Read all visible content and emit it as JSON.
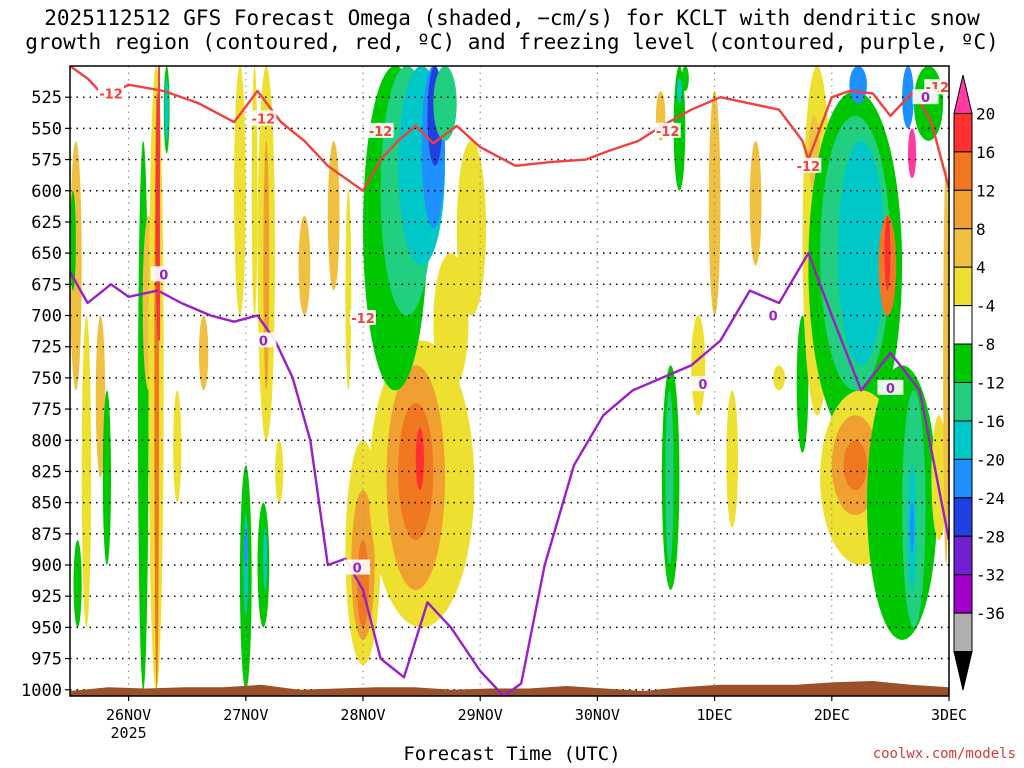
{
  "title_line1": "2025112512 GFS Forecast Omega (shaded, −cm/s) for KCLT with dendritic snow",
  "title_line2": "growth region (contoured, red, ºC) and freezing level (contoured, purple, ºC)",
  "credit": "coolwx.com/models",
  "chart_data": {
    "type": "heatmap",
    "xlabel": "Forecast Time (UTC)",
    "x_tick_labels": [
      "26NOV",
      "27NOV",
      "28NOV",
      "29NOV",
      "30NOV",
      "1DEC",
      "2DEC",
      "3DEC"
    ],
    "x_tick_sublabel": "2025",
    "x_range_days": [
      25.5,
      33.0
    ],
    "y_tick_labels": [
      "525",
      "550",
      "575",
      "600",
      "625",
      "650",
      "675",
      "700",
      "725",
      "750",
      "775",
      "800",
      "825",
      "850",
      "875",
      "900",
      "925",
      "950",
      "975",
      "1000"
    ],
    "y_range_hpa": [
      500,
      1005
    ],
    "colorbar_labels": [
      "20",
      "16",
      "12",
      "8",
      "4",
      "-4",
      "-8",
      "-12",
      "-16",
      "-20",
      "-24",
      "-28",
      "-32",
      "-36"
    ],
    "colorbar_colors": [
      "#ff3aa0",
      "#ff3030",
      "#f07820",
      "#f0a030",
      "#f0c040",
      "#ede030",
      "#ffffff",
      "#00c800",
      "#20d080",
      "#00c8c8",
      "#1e90ff",
      "#2040e0",
      "#7020d0",
      "#a000c8",
      "#b0b0b0",
      "#000000"
    ],
    "contour_labels": {
      "dgz": "-12",
      "freezing": "0"
    },
    "contour_colors": {
      "dgz": "#f04040",
      "freezing": "#9a1fc8",
      "terrain": "#9a5028"
    },
    "dgz_line_hpa": {
      "day": [
        25.5,
        25.65,
        25.8,
        26.0,
        26.3,
        26.6,
        26.9,
        27.1,
        27.3,
        27.5,
        27.7,
        27.85,
        28.0,
        28.15,
        28.3,
        28.45,
        28.6,
        28.8,
        29.0,
        29.3,
        29.6,
        29.9,
        30.1,
        30.35,
        30.55,
        30.8,
        31.05,
        31.3,
        31.55,
        31.75,
        31.8,
        32.0,
        32.15,
        32.35,
        32.5,
        32.7,
        32.85,
        33.0
      ],
      "pres": [
        500,
        510,
        525,
        515,
        520,
        530,
        545,
        520,
        545,
        560,
        580,
        590,
        600,
        575,
        560,
        548,
        562,
        548,
        565,
        580,
        577,
        575,
        568,
        560,
        548,
        535,
        525,
        530,
        535,
        560,
        575,
        525,
        520,
        522,
        540,
        520,
        545,
        598
      ]
    },
    "freezing_line_hpa": {
      "day": [
        25.5,
        25.65,
        25.85,
        26.0,
        26.25,
        26.45,
        26.7,
        26.9,
        27.1,
        27.25,
        27.4,
        27.55,
        27.7,
        27.85,
        28.0,
        28.15,
        28.35,
        28.55,
        28.75,
        29.0,
        29.2,
        29.35,
        29.55,
        29.8,
        30.05,
        30.3,
        30.55,
        30.8,
        31.05,
        31.3,
        31.55,
        31.8,
        32.0,
        32.25,
        32.5,
        32.75,
        33.0
      ],
      "pres": [
        665,
        690,
        675,
        685,
        680,
        690,
        700,
        705,
        700,
        720,
        750,
        800,
        900,
        895,
        920,
        975,
        990,
        930,
        950,
        985,
        1005,
        995,
        900,
        820,
        780,
        760,
        750,
        740,
        720,
        680,
        690,
        650,
        700,
        760,
        730,
        760,
        880
      ]
    }
  }
}
